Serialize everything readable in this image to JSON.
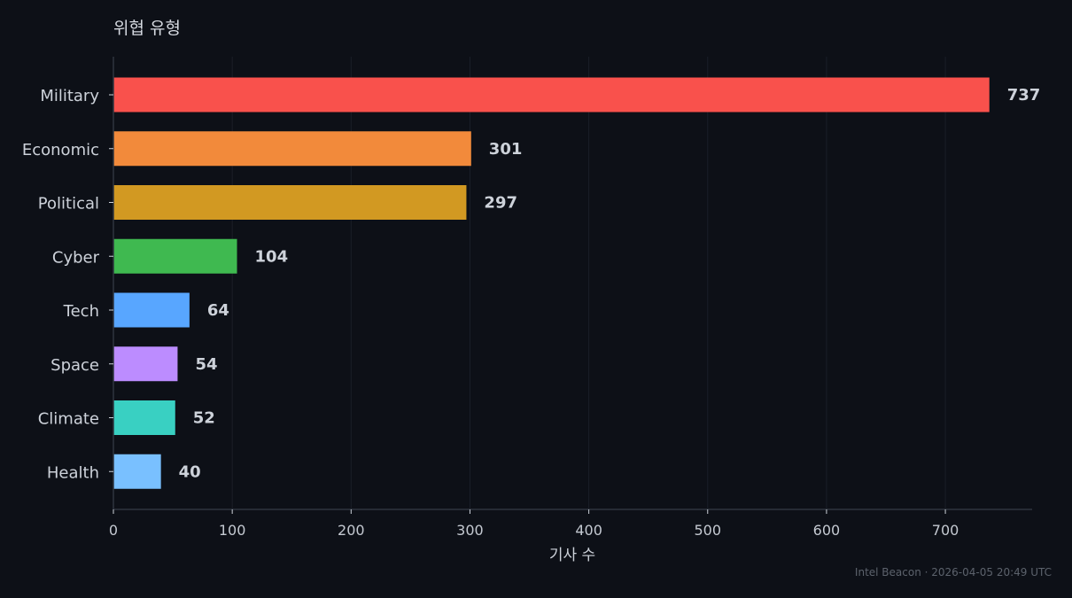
{
  "chart_data": {
    "type": "bar",
    "orientation": "horizontal",
    "title": "위협 유형",
    "xlabel": "기사 수",
    "ylabel": "",
    "categories": [
      "Military",
      "Economic",
      "Political",
      "Cyber",
      "Tech",
      "Space",
      "Climate",
      "Health"
    ],
    "values": [
      737,
      301,
      297,
      104,
      64,
      54,
      52,
      40
    ],
    "colors": [
      "#f9514c",
      "#f28a3b",
      "#d29922",
      "#3fb950",
      "#58a6ff",
      "#bc8cff",
      "#39d0c2",
      "#79c0ff"
    ],
    "xticks": [
      0,
      100,
      200,
      300,
      400,
      500,
      600,
      700
    ],
    "xlim": [
      0,
      773
    ],
    "grid": "vertical"
  },
  "footer": "Intel Beacon · 2026-04-05 20:49 UTC"
}
